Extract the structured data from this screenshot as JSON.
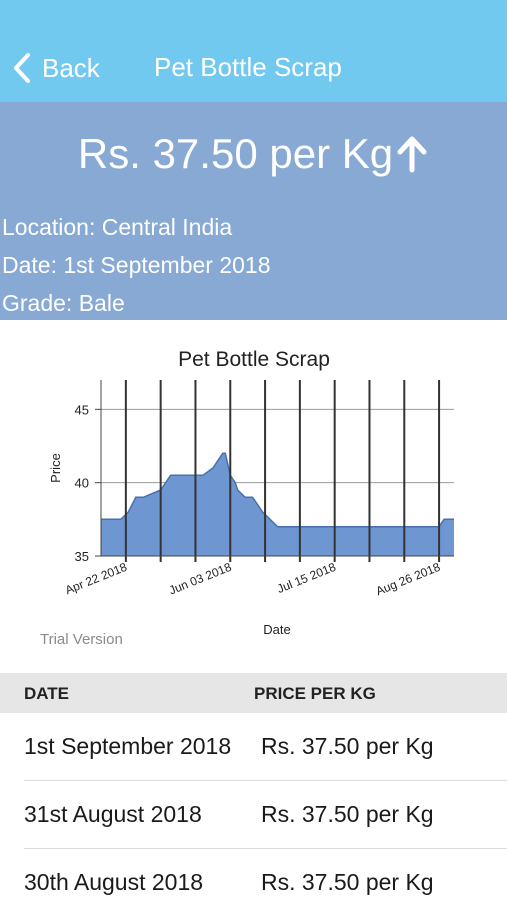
{
  "nav": {
    "back_label": "Back",
    "title": "Pet Bottle Scrap",
    "bg_color": "#72c9f0",
    "back_icon": "chevron-left-icon"
  },
  "price_panel": {
    "price": "Rs. 37.50 per Kg",
    "trend_icon": "arrow-up-icon",
    "location": "Location: Central India",
    "date": "Date: 1st September 2018",
    "grade": "Grade: Bale",
    "bg_color": "#88a9d3"
  },
  "chart_data": {
    "type": "area",
    "title": "Pet Bottle Scrap",
    "xlabel": "Date",
    "ylabel": "Price",
    "ylim": [
      35,
      47
    ],
    "yticks": [
      "35",
      "40",
      "45"
    ],
    "xtick_labels": [
      "Apr 22 2018",
      "Jun 03 2018",
      "Jul 15 2018",
      "Aug 26 2018"
    ],
    "grid": true,
    "watermark": "Trial Version",
    "fill_color": "#6e96d0",
    "line_color": "#4a6fb0",
    "x_start": "2018-04-12",
    "x_end": "2018-09-01",
    "x": [
      "2018-04-12",
      "2018-04-20",
      "2018-04-23",
      "2018-04-26",
      "2018-04-29",
      "2018-05-06",
      "2018-05-10",
      "2018-05-13",
      "2018-05-16",
      "2018-05-23",
      "2018-05-27",
      "2018-05-29",
      "2018-05-31",
      "2018-06-01",
      "2018-06-03",
      "2018-06-05",
      "2018-06-06",
      "2018-06-09",
      "2018-06-12",
      "2018-06-16",
      "2018-06-19",
      "2018-06-22",
      "2018-06-26",
      "2018-07-06",
      "2018-07-20",
      "2018-08-10",
      "2018-08-26",
      "2018-08-28",
      "2018-09-01"
    ],
    "values": [
      37.5,
      37.5,
      38.0,
      39.0,
      39.0,
      39.5,
      40.5,
      40.5,
      40.5,
      40.5,
      41.0,
      41.5,
      42.0,
      42.0,
      40.5,
      40.0,
      39.5,
      39.0,
      39.0,
      38.0,
      37.5,
      37.0,
      37.0,
      37.0,
      37.0,
      37.0,
      37.0,
      37.5,
      37.5
    ]
  },
  "table": {
    "headers": {
      "date": "DATE",
      "price": "PRICE PER KG"
    },
    "rows": [
      {
        "date": "1st September 2018",
        "price": "Rs. 37.50 per Kg"
      },
      {
        "date": "31st August 2018",
        "price": "Rs. 37.50 per Kg"
      },
      {
        "date": "30th August 2018",
        "price": "Rs. 37.50 per Kg"
      }
    ]
  }
}
